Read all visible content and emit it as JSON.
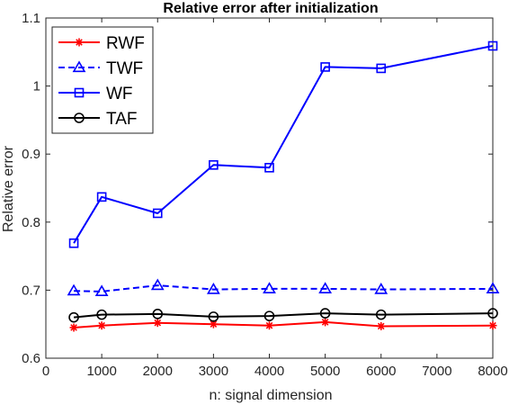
{
  "chart_data": {
    "type": "line",
    "title": "Relative error after initialization",
    "xlabel": "n: signal dimension",
    "ylabel": "Relative error",
    "xlim": [
      0,
      8000
    ],
    "ylim": [
      0.6,
      1.1
    ],
    "xticks": [
      0,
      1000,
      2000,
      3000,
      4000,
      5000,
      6000,
      7000,
      8000
    ],
    "yticks": [
      0.6,
      0.7,
      0.8,
      0.9,
      1.0,
      1.1
    ],
    "xtick_labels": [
      "0",
      "1000",
      "2000",
      "3000",
      "4000",
      "5000",
      "6000",
      "7000",
      "8000"
    ],
    "ytick_labels": [
      "0.6",
      "0.7",
      "0.8",
      "0.9",
      "1",
      "1.1"
    ],
    "grid": false,
    "legend_position": "top-left",
    "x": [
      500,
      1000,
      2000,
      3000,
      4000,
      5000,
      6000,
      8000
    ],
    "series": [
      {
        "name": "RWF",
        "color": "#ff0000",
        "dash": "solid",
        "marker": "asterisk",
        "values": [
          0.645,
          0.648,
          0.652,
          0.65,
          0.648,
          0.653,
          0.647,
          0.648
        ]
      },
      {
        "name": "TWF",
        "color": "#0000ff",
        "dash": "dashed",
        "marker": "triangle",
        "values": [
          0.699,
          0.698,
          0.707,
          0.701,
          0.702,
          0.702,
          0.701,
          0.702
        ]
      },
      {
        "name": "WF",
        "color": "#0000ff",
        "dash": "solid",
        "marker": "square",
        "values": [
          0.769,
          0.837,
          0.813,
          0.884,
          0.88,
          1.028,
          1.026,
          1.059
        ]
      },
      {
        "name": "TAF",
        "color": "#000000",
        "dash": "solid",
        "marker": "circle",
        "values": [
          0.66,
          0.664,
          0.665,
          0.661,
          0.662,
          0.666,
          0.664,
          0.666
        ]
      }
    ]
  }
}
